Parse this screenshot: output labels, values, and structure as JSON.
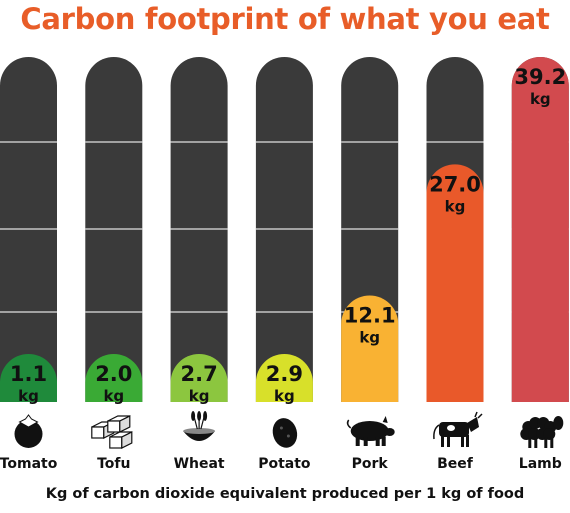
{
  "title": "Carbon footprint of what you eat",
  "footnote": "Kg of carbon dioxide equivalent produced per 1 kg of food",
  "colors": {
    "track": "#3a3a3a",
    "title": "#e85d28"
  },
  "chart_data": {
    "type": "bar",
    "title": "Carbon footprint of what you eat",
    "xlabel": "",
    "ylabel": "",
    "unit": "kg",
    "ylim": [
      0,
      39.2
    ],
    "categories": [
      "Tomato",
      "Tofu",
      "Wheat",
      "Potato",
      "Pork",
      "Beef",
      "Lamb"
    ],
    "values": [
      1.1,
      2.0,
      2.7,
      2.9,
      12.1,
      27.0,
      39.2
    ],
    "value_labels": [
      "1.1",
      "2.0",
      "2.7",
      "2.9",
      "12.1",
      "27.0",
      "39.2"
    ],
    "bar_colors": [
      "#1f8a3b",
      "#3aaa35",
      "#8cc63f",
      "#d8e02a",
      "#f9b233",
      "#e9592a",
      "#d24a4e"
    ],
    "icons": [
      "tomato-icon",
      "tofu-icon",
      "wheat-icon",
      "potato-icon",
      "pig-icon",
      "cow-icon",
      "sheep-icon"
    ]
  }
}
